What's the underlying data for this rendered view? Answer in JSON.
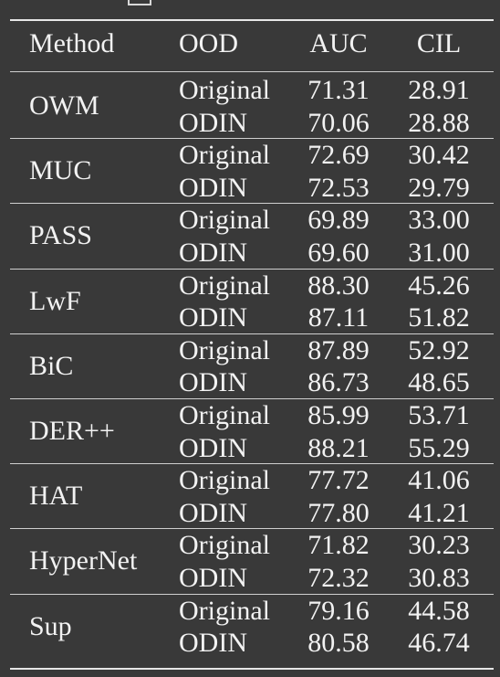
{
  "table": {
    "headers": [
      "Method",
      "OOD",
      "AUC",
      "CIL"
    ],
    "groups": [
      {
        "method": "OWM",
        "rows": [
          {
            "ood": "Original",
            "auc": "71.31",
            "cil": "28.91"
          },
          {
            "ood": "ODIN",
            "auc": "70.06",
            "cil": "28.88"
          }
        ]
      },
      {
        "method": "MUC",
        "rows": [
          {
            "ood": "Original",
            "auc": "72.69",
            "cil": "30.42"
          },
          {
            "ood": "ODIN",
            "auc": "72.53",
            "cil": "29.79"
          }
        ]
      },
      {
        "method": "PASS",
        "rows": [
          {
            "ood": "Original",
            "auc": "69.89",
            "cil": "33.00"
          },
          {
            "ood": "ODIN",
            "auc": "69.60",
            "cil": "31.00"
          }
        ]
      },
      {
        "method": "LwF",
        "rows": [
          {
            "ood": "Original",
            "auc": "88.30",
            "cil": "45.26"
          },
          {
            "ood": "ODIN",
            "auc": "87.11",
            "cil": "51.82"
          }
        ]
      },
      {
        "method": "BiC",
        "rows": [
          {
            "ood": "Original",
            "auc": "87.89",
            "cil": "52.92"
          },
          {
            "ood": "ODIN",
            "auc": "86.73",
            "cil": "48.65"
          }
        ]
      },
      {
        "method": "DER++",
        "rows": [
          {
            "ood": "Original",
            "auc": "85.99",
            "cil": "53.71"
          },
          {
            "ood": "ODIN",
            "auc": "88.21",
            "cil": "55.29"
          }
        ]
      },
      {
        "method": "HAT",
        "rows": [
          {
            "ood": "Original",
            "auc": "77.72",
            "cil": "41.06"
          },
          {
            "ood": "ODIN",
            "auc": "77.80",
            "cil": "41.21"
          }
        ]
      },
      {
        "method": "HyperNet",
        "rows": [
          {
            "ood": "Original",
            "auc": "71.82",
            "cil": "30.23"
          },
          {
            "ood": "ODIN",
            "auc": "72.32",
            "cil": "30.83"
          }
        ]
      },
      {
        "method": "Sup",
        "rows": [
          {
            "ood": "Original",
            "auc": "79.16",
            "cil": "44.58"
          },
          {
            "ood": "ODIN",
            "auc": "80.58",
            "cil": "46.74"
          }
        ]
      }
    ]
  }
}
